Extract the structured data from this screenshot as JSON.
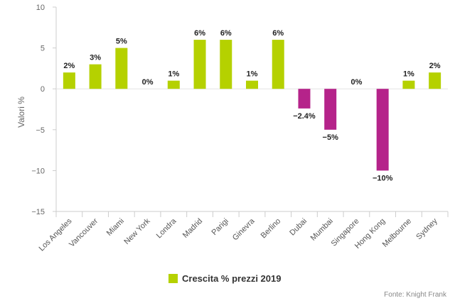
{
  "chart_data": {
    "type": "bar",
    "categories": [
      "Los Angeles",
      "Vancouver",
      "Miami",
      "New York",
      "Londra",
      "Madrid",
      "Parigi",
      "Ginevra",
      "Berlino",
      "Dubai",
      "Mumbai",
      "Singapore",
      "Hong Kong",
      "Melbourne",
      "Sydney"
    ],
    "series": [
      {
        "name": "Crescita % prezzi 2019",
        "values": [
          2,
          3,
          5,
          0,
          1,
          6,
          6,
          1,
          6,
          -2.4,
          -5,
          0,
          -10,
          1,
          2
        ],
        "labels": [
          "2%",
          "3%",
          "5%",
          "0%",
          "1%",
          "6%",
          "6%",
          "1%",
          "6%",
          "−2.4%",
          "−5%",
          "0%",
          "−10%",
          "1%",
          "2%"
        ]
      }
    ],
    "ylabel": "Valori %",
    "ylim": [
      -15,
      10
    ],
    "yticks": [
      10,
      5,
      0,
      -5,
      -10,
      -15
    ],
    "ytick_labels": [
      "10",
      "5",
      "0",
      "−5",
      "−10",
      "−15"
    ],
    "positive_color": "#b5d100",
    "negative_color": "#b5238a",
    "grid": false,
    "legend_position": "bottom"
  },
  "legend": {
    "label": "Crescita % prezzi 2019",
    "color": "#b5d100"
  },
  "source": "Fonte: Knight Frank"
}
